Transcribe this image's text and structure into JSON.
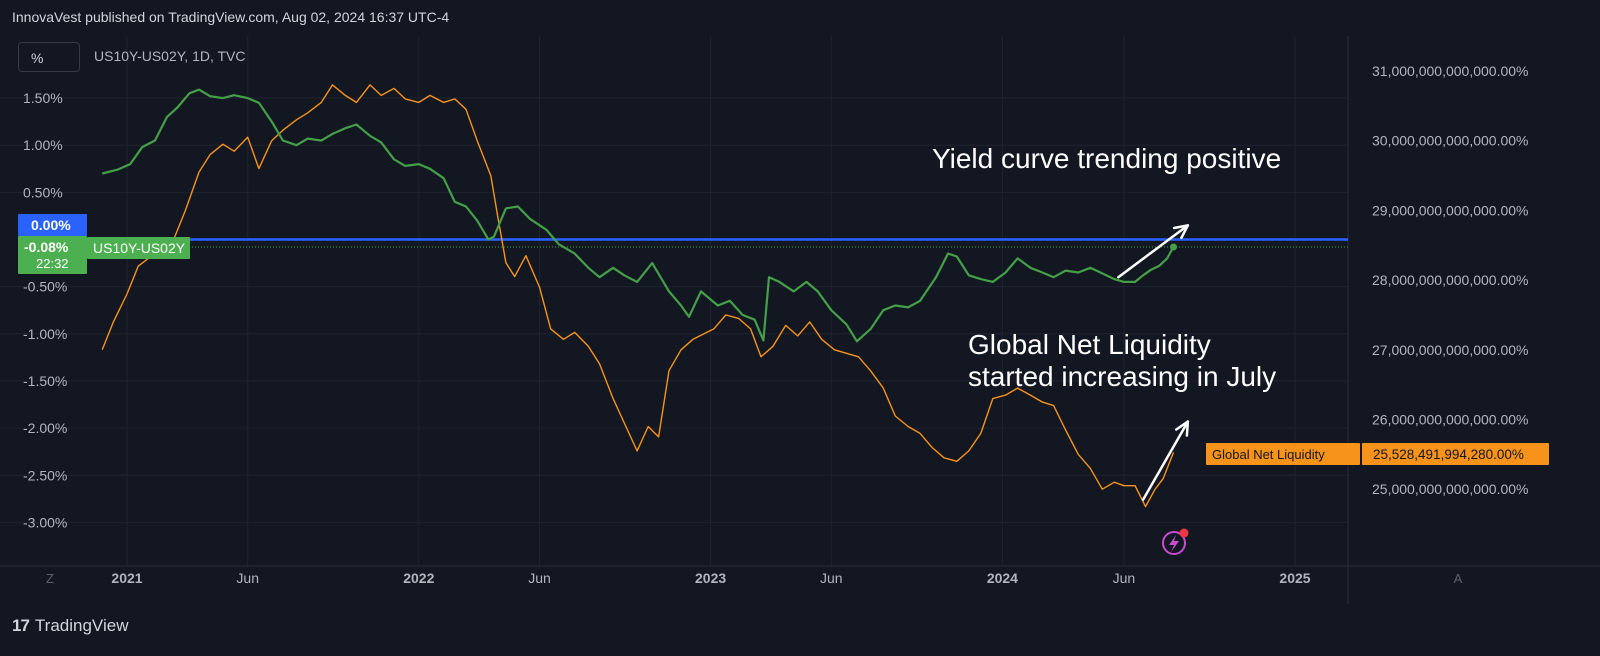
{
  "header": {
    "published": "InnovaVest published on TradingView.com, Aug 02, 2024 16:37 UTC-4"
  },
  "toolbar": {
    "scale_button": "%",
    "symbol": "US10Y-US02Y, 1D, TVC",
    "left_corner": "Z",
    "right_corner": "A"
  },
  "footer": {
    "logo_mark": "17",
    "brand": "TradingView"
  },
  "colors": {
    "background": "#131722",
    "grid": "#1f2330",
    "text": "#d1d4dc",
    "yield": "#43a047",
    "liquidity": "#f7931a",
    "zero_line": "#2962ff"
  },
  "chart_data": {
    "type": "line",
    "title": "",
    "x_axis": {
      "ticks": [
        "2021",
        "Jun",
        "2022",
        "Jun",
        "2023",
        "Jun",
        "2024",
        "Jun",
        "2025"
      ]
    },
    "y_left": {
      "unit": "%",
      "ticks": [
        "1.50%",
        "1.00%",
        "0.50%",
        "-0.50%",
        "-1.00%",
        "-1.50%",
        "-2.00%",
        "-2.50%",
        "-3.00%"
      ],
      "tick_values": [
        1.5,
        1.0,
        0.5,
        -0.5,
        -1.0,
        -1.5,
        -2.0,
        -2.5,
        -3.0
      ],
      "range": [
        -3.4,
        1.7
      ]
    },
    "y_right": {
      "ticks": [
        "31,000,000,000,000.00%",
        "30,000,000,000,000.00%",
        "29,000,000,000,000.00%",
        "28,000,000,000,000.00%",
        "27,000,000,000,000.00%",
        "26,000,000,000,000.00%",
        "25,000,000,000,000.00%"
      ],
      "tick_values": [
        31000000000000,
        30000000000000,
        29000000000000,
        28000000000000,
        27000000000000,
        26000000000000,
        25000000000000
      ]
    },
    "series": [
      {
        "name": "US10Y-US02Y",
        "axis": "left",
        "color": "#43a047",
        "points": [
          [
            "2020-12-01",
            0.7
          ],
          [
            "2020-12-20",
            0.74
          ],
          [
            "2021-01-05",
            0.8
          ],
          [
            "2021-01-20",
            0.98
          ],
          [
            "2021-02-05",
            1.05
          ],
          [
            "2021-02-20",
            1.3
          ],
          [
            "2021-03-05",
            1.4
          ],
          [
            "2021-03-20",
            1.55
          ],
          [
            "2021-04-01",
            1.59
          ],
          [
            "2021-04-15",
            1.52
          ],
          [
            "2021-05-01",
            1.5
          ],
          [
            "2021-05-15",
            1.53
          ],
          [
            "2021-06-01",
            1.5
          ],
          [
            "2021-06-15",
            1.45
          ],
          [
            "2021-07-01",
            1.25
          ],
          [
            "2021-07-15",
            1.05
          ],
          [
            "2021-08-01",
            1.0
          ],
          [
            "2021-08-15",
            1.07
          ],
          [
            "2021-09-01",
            1.05
          ],
          [
            "2021-09-15",
            1.12
          ],
          [
            "2021-10-01",
            1.18
          ],
          [
            "2021-10-15",
            1.22
          ],
          [
            "2021-11-01",
            1.1
          ],
          [
            "2021-11-15",
            1.03
          ],
          [
            "2021-12-01",
            0.85
          ],
          [
            "2021-12-15",
            0.78
          ],
          [
            "2022-01-01",
            0.8
          ],
          [
            "2022-01-15",
            0.75
          ],
          [
            "2022-02-01",
            0.65
          ],
          [
            "2022-02-15",
            0.4
          ],
          [
            "2022-03-01",
            0.35
          ],
          [
            "2022-03-15",
            0.2
          ],
          [
            "2022-03-29",
            0.0
          ],
          [
            "2022-04-05",
            0.03
          ],
          [
            "2022-04-20",
            0.33
          ],
          [
            "2022-05-05",
            0.35
          ],
          [
            "2022-05-20",
            0.22
          ],
          [
            "2022-06-10",
            0.1
          ],
          [
            "2022-06-25",
            -0.05
          ],
          [
            "2022-07-15",
            -0.15
          ],
          [
            "2022-08-01",
            -0.3
          ],
          [
            "2022-08-15",
            -0.4
          ],
          [
            "2022-09-01",
            -0.3
          ],
          [
            "2022-09-15",
            -0.38
          ],
          [
            "2022-10-01",
            -0.45
          ],
          [
            "2022-10-20",
            -0.25
          ],
          [
            "2022-11-10",
            -0.55
          ],
          [
            "2022-11-25",
            -0.7
          ],
          [
            "2022-12-05",
            -0.82
          ],
          [
            "2022-12-20",
            -0.55
          ],
          [
            "2023-01-10",
            -0.7
          ],
          [
            "2023-01-25",
            -0.65
          ],
          [
            "2023-02-10",
            -0.8
          ],
          [
            "2023-02-25",
            -0.85
          ],
          [
            "2023-03-08",
            -1.07
          ],
          [
            "2023-03-15",
            -0.4
          ],
          [
            "2023-03-28",
            -0.45
          ],
          [
            "2023-04-15",
            -0.55
          ],
          [
            "2023-05-01",
            -0.45
          ],
          [
            "2023-05-15",
            -0.55
          ],
          [
            "2023-06-01",
            -0.75
          ],
          [
            "2023-06-20",
            -0.9
          ],
          [
            "2023-07-03",
            -1.08
          ],
          [
            "2023-07-20",
            -0.95
          ],
          [
            "2023-08-05",
            -0.75
          ],
          [
            "2023-08-20",
            -0.7
          ],
          [
            "2023-09-05",
            -0.72
          ],
          [
            "2023-09-20",
            -0.65
          ],
          [
            "2023-10-10",
            -0.4
          ],
          [
            "2023-10-25",
            -0.15
          ],
          [
            "2023-11-05",
            -0.18
          ],
          [
            "2023-11-20",
            -0.38
          ],
          [
            "2023-12-05",
            -0.42
          ],
          [
            "2023-12-20",
            -0.45
          ],
          [
            "2024-01-05",
            -0.35
          ],
          [
            "2024-01-20",
            -0.2
          ],
          [
            "2024-02-05",
            -0.3
          ],
          [
            "2024-02-20",
            -0.35
          ],
          [
            "2024-03-05",
            -0.4
          ],
          [
            "2024-03-20",
            -0.33
          ],
          [
            "2024-04-05",
            -0.35
          ],
          [
            "2024-04-20",
            -0.3
          ],
          [
            "2024-05-05",
            -0.36
          ],
          [
            "2024-05-20",
            -0.42
          ],
          [
            "2024-06-01",
            -0.45
          ],
          [
            "2024-06-15",
            -0.45
          ],
          [
            "2024-06-25",
            -0.38
          ],
          [
            "2024-07-05",
            -0.32
          ],
          [
            "2024-07-15",
            -0.28
          ],
          [
            "2024-07-25",
            -0.2
          ],
          [
            "2024-08-02",
            -0.08
          ]
        ]
      },
      {
        "name": "Global Net Liquidity",
        "axis": "right",
        "color": "#f7931a",
        "points": [
          [
            "2020-12-01",
            27000000000000
          ],
          [
            "2020-12-15",
            27400000000000
          ],
          [
            "2021-01-01",
            27800000000000
          ],
          [
            "2021-01-15",
            28200000000000
          ],
          [
            "2021-02-01",
            28350000000000
          ],
          [
            "2021-02-15",
            28500000000000
          ],
          [
            "2021-03-01",
            28600000000000
          ],
          [
            "2021-03-15",
            29000000000000
          ],
          [
            "2021-04-01",
            29550000000000
          ],
          [
            "2021-04-15",
            29800000000000
          ],
          [
            "2021-05-01",
            29950000000000
          ],
          [
            "2021-05-15",
            29850000000000
          ],
          [
            "2021-06-01",
            30050000000000
          ],
          [
            "2021-06-15",
            29600000000000
          ],
          [
            "2021-07-01",
            30000000000000
          ],
          [
            "2021-07-15",
            30150000000000
          ],
          [
            "2021-08-01",
            30300000000000
          ],
          [
            "2021-08-15",
            30400000000000
          ],
          [
            "2021-09-01",
            30550000000000
          ],
          [
            "2021-09-15",
            30800000000000
          ],
          [
            "2021-10-01",
            30650000000000
          ],
          [
            "2021-10-15",
            30550000000000
          ],
          [
            "2021-11-01",
            30800000000000
          ],
          [
            "2021-11-15",
            30650000000000
          ],
          [
            "2021-12-01",
            30750000000000
          ],
          [
            "2021-12-15",
            30600000000000
          ],
          [
            "2022-01-01",
            30550000000000
          ],
          [
            "2022-01-15",
            30650000000000
          ],
          [
            "2022-02-01",
            30550000000000
          ],
          [
            "2022-02-15",
            30600000000000
          ],
          [
            "2022-03-01",
            30450000000000
          ],
          [
            "2022-03-15",
            30000000000000
          ],
          [
            "2022-04-01",
            29500000000000
          ],
          [
            "2022-04-10",
            28900000000000
          ],
          [
            "2022-04-20",
            28250000000000
          ],
          [
            "2022-05-01",
            28050000000000
          ],
          [
            "2022-05-15",
            28350000000000
          ],
          [
            "2022-06-01",
            27900000000000
          ],
          [
            "2022-06-15",
            27300000000000
          ],
          [
            "2022-07-01",
            27150000000000
          ],
          [
            "2022-07-15",
            27250000000000
          ],
          [
            "2022-08-01",
            27050000000000
          ],
          [
            "2022-08-15",
            26800000000000
          ],
          [
            "2022-09-01",
            26300000000000
          ],
          [
            "2022-09-15",
            25950000000000
          ],
          [
            "2022-10-01",
            25550000000000
          ],
          [
            "2022-10-15",
            25900000000000
          ],
          [
            "2022-10-28",
            25750000000000
          ],
          [
            "2022-11-10",
            26700000000000
          ],
          [
            "2022-11-25",
            27000000000000
          ],
          [
            "2022-12-10",
            27150000000000
          ],
          [
            "2023-01-05",
            27300000000000
          ],
          [
            "2023-01-20",
            27500000000000
          ],
          [
            "2023-02-05",
            27450000000000
          ],
          [
            "2023-02-20",
            27300000000000
          ],
          [
            "2023-03-05",
            26900000000000
          ],
          [
            "2023-03-20",
            27050000000000
          ],
          [
            "2023-04-05",
            27350000000000
          ],
          [
            "2023-04-20",
            27200000000000
          ],
          [
            "2023-05-05",
            27400000000000
          ],
          [
            "2023-05-20",
            27150000000000
          ],
          [
            "2023-06-05",
            27000000000000
          ],
          [
            "2023-06-20",
            26950000000000
          ],
          [
            "2023-07-05",
            26900000000000
          ],
          [
            "2023-07-20",
            26700000000000
          ],
          [
            "2023-08-05",
            26450000000000
          ],
          [
            "2023-08-20",
            26050000000000
          ],
          [
            "2023-09-05",
            25900000000000
          ],
          [
            "2023-09-20",
            25800000000000
          ],
          [
            "2023-10-05",
            25600000000000
          ],
          [
            "2023-10-20",
            25450000000000
          ],
          [
            "2023-11-05",
            25400000000000
          ],
          [
            "2023-11-20",
            25550000000000
          ],
          [
            "2023-12-05",
            25800000000000
          ],
          [
            "2023-12-20",
            26300000000000
          ],
          [
            "2024-01-05",
            26350000000000
          ],
          [
            "2024-01-20",
            26450000000000
          ],
          [
            "2024-02-05",
            26350000000000
          ],
          [
            "2024-02-20",
            26250000000000
          ],
          [
            "2024-03-05",
            26200000000000
          ],
          [
            "2024-03-20",
            25850000000000
          ],
          [
            "2024-04-05",
            25500000000000
          ],
          [
            "2024-04-20",
            25300000000000
          ],
          [
            "2024-05-05",
            25000000000000
          ],
          [
            "2024-05-20",
            25100000000000
          ],
          [
            "2024-06-01",
            25050000000000
          ],
          [
            "2024-06-15",
            25050000000000
          ],
          [
            "2024-06-28",
            24750000000000
          ],
          [
            "2024-07-10",
            25000000000000
          ],
          [
            "2024-07-20",
            25150000000000
          ],
          [
            "2024-08-02",
            25528491994280
          ]
        ]
      }
    ],
    "horizontal_lines": [
      {
        "value": 0.0,
        "color": "#2962ff"
      }
    ],
    "price_labels": {
      "zero": "0.00%",
      "current_yield": "-0.08%",
      "countdown": "22:32",
      "yield_series": "US10Y-US02Y",
      "liquidity_series": "Global Net Liquidity",
      "liquidity_value": "25,528,491,994,280.00%"
    },
    "annotations": [
      {
        "text": "Yield curve trending positive",
        "arrow_from": [
          "2024-05-25",
          -0.4
        ],
        "arrow_to": [
          "2024-08-20",
          0.15
        ]
      },
      {
        "text": "Global Net Liquidity",
        "text2": "started increasing in July",
        "arrow_from": [
          "2024-06-25",
          24850000000000
        ],
        "arrow_to": [
          "2024-08-20",
          25970000000000
        ]
      }
    ]
  }
}
